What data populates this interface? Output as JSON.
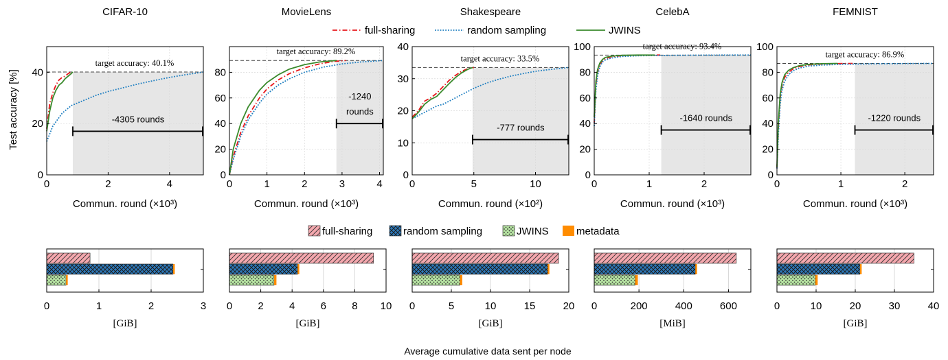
{
  "figure": {
    "ylabel_top": "Test accuracy [%]",
    "bottom_caption": "Average cumulative data sent per node",
    "colors": {
      "full_sharing": "#e8171c",
      "random_sampling": "#1f7fc1",
      "jwins": "#3a8a2c",
      "metadata": "#ff8c00",
      "full_sharing_fill": "#f4a8ae",
      "random_sampling_fill": "#2e78b7",
      "jwins_fill": "#b6e3a2",
      "shade": "#e6e6e6"
    }
  },
  "legend_top": [
    {
      "key": "full_sharing",
      "label": "full-sharing"
    },
    {
      "key": "random_sampling",
      "label": "random sampling"
    },
    {
      "key": "jwins",
      "label": "JWINS"
    }
  ],
  "legend_bottom": [
    {
      "key": "full_sharing",
      "label": "full-sharing"
    },
    {
      "key": "random_sampling",
      "label": "random sampling"
    },
    {
      "key": "jwins",
      "label": "JWINS"
    },
    {
      "key": "metadata",
      "label": "metadata"
    }
  ],
  "chart_data": [
    {
      "type": "line",
      "title": "CIFAR-10",
      "xlabel": "Commun. round (×10³)",
      "ylabel": "Test accuracy [%]",
      "xlim": [
        0,
        5.1
      ],
      "ylim": [
        0,
        50
      ],
      "xticks": [
        0,
        2,
        4
      ],
      "yticks": [
        0,
        20,
        40
      ],
      "target_accuracy": 40.1,
      "target_label": "target accuracy: 40.1%",
      "saving_label": "-4305 rounds",
      "shade_from": 0.85,
      "arrow_y": 17,
      "series": [
        {
          "name": "full-sharing",
          "key": "full_sharing",
          "x": [
            0,
            0.1,
            0.2,
            0.3,
            0.4,
            0.5,
            0.6,
            0.7,
            0.8
          ],
          "y": [
            18,
            28,
            32,
            35,
            37,
            38,
            38.5,
            39.5,
            40.1
          ]
        },
        {
          "name": "random sampling",
          "key": "random_sampling",
          "x": [
            0,
            0.2,
            0.5,
            0.8,
            1.2,
            1.6,
            2,
            2.5,
            3,
            3.5,
            4,
            4.5,
            5.1
          ],
          "y": [
            13,
            19,
            24,
            27,
            29,
            31,
            32.5,
            34,
            35.5,
            36.8,
            38,
            39,
            40.1
          ]
        },
        {
          "name": "JWINS",
          "key": "jwins",
          "x": [
            0,
            0.1,
            0.2,
            0.3,
            0.4,
            0.5,
            0.6,
            0.7,
            0.8,
            0.85
          ],
          "y": [
            17,
            25,
            30,
            33,
            35,
            36,
            37.5,
            38.5,
            39.5,
            40.1
          ]
        }
      ]
    },
    {
      "type": "line",
      "title": "MovieLens",
      "xlabel": "Commun. round (×10³)",
      "xlim": [
        0,
        4.1
      ],
      "ylim": [
        0,
        100
      ],
      "xticks": [
        0,
        1,
        2,
        3,
        4
      ],
      "yticks": [
        0,
        20,
        40,
        60,
        80
      ],
      "target_accuracy": 89.2,
      "target_label": "target accuracy: 89.2%",
      "saving_label_lines": [
        "-1240",
        "rounds"
      ],
      "shade_from": 2.85,
      "arrow_y": 40,
      "series": [
        {
          "name": "full-sharing",
          "key": "full_sharing",
          "x": [
            0,
            0.1,
            0.3,
            0.5,
            0.8,
            1.0,
            1.3,
            1.6,
            2.0,
            2.4,
            2.8,
            3.1
          ],
          "y": [
            0,
            14,
            33,
            46,
            60,
            67,
            74,
            79,
            83.5,
            86.5,
            88.5,
            89.2
          ]
        },
        {
          "name": "random sampling",
          "key": "random_sampling",
          "x": [
            0,
            0.1,
            0.3,
            0.5,
            0.8,
            1.0,
            1.3,
            1.6,
            2.0,
            2.5,
            3.0,
            3.5,
            4.1
          ],
          "y": [
            0,
            12,
            30,
            43,
            56,
            63,
            70,
            75,
            80,
            84,
            86.5,
            88,
            89.2
          ]
        },
        {
          "name": "JWINS",
          "key": "jwins",
          "x": [
            0,
            0.1,
            0.3,
            0.5,
            0.8,
            1.0,
            1.3,
            1.6,
            2.0,
            2.4,
            2.85
          ],
          "y": [
            0,
            20,
            40,
            53,
            66,
            72,
            78,
            82.5,
            86,
            88,
            89.2
          ]
        }
      ]
    },
    {
      "type": "line",
      "title": "Shakespeare",
      "xlabel": "Commun. round (×10²)",
      "xlim": [
        0,
        12.7
      ],
      "ylim": [
        0,
        40
      ],
      "xticks": [
        0,
        5,
        10
      ],
      "yticks": [
        0,
        10,
        20,
        30,
        40
      ],
      "target_accuracy": 33.5,
      "target_label": "target accuracy: 33.5%",
      "saving_label": "-777 rounds",
      "shade_from": 4.9,
      "arrow_y": 11,
      "series": [
        {
          "name": "full-sharing",
          "key": "full_sharing",
          "x": [
            0,
            0.5,
            1,
            1.5,
            2,
            2.5,
            3,
            3.5,
            4,
            4.5,
            5
          ],
          "y": [
            18,
            20,
            23,
            24,
            25.5,
            27.5,
            29.5,
            31,
            32.3,
            33.1,
            33.5
          ]
        },
        {
          "name": "random sampling",
          "key": "random_sampling",
          "x": [
            0,
            0.5,
            1,
            1.5,
            2,
            2.5,
            3,
            3.5,
            4,
            5,
            6,
            7,
            8,
            9,
            10,
            11,
            12,
            12.7
          ],
          "y": [
            17.5,
            18.5,
            19.5,
            20.5,
            21.5,
            22,
            23,
            24,
            25,
            27,
            28.6,
            29.8,
            30.8,
            31.6,
            32.3,
            32.8,
            33.2,
            33.5
          ]
        },
        {
          "name": "JWINS",
          "key": "jwins",
          "x": [
            0,
            0.5,
            1,
            1.5,
            2,
            2.5,
            3,
            3.5,
            4,
            4.5,
            4.9
          ],
          "y": [
            17.5,
            19.5,
            22,
            23.5,
            24.5,
            26.5,
            28.5,
            30.3,
            31.8,
            32.9,
            33.5
          ]
        }
      ]
    },
    {
      "type": "line",
      "title": "CelebA",
      "xlabel": "Commun. round (×10³)",
      "xlim": [
        0,
        2.85
      ],
      "ylim": [
        0,
        100
      ],
      "xticks": [
        0,
        1,
        2
      ],
      "yticks": [
        0,
        20,
        40,
        60,
        80,
        100
      ],
      "target_accuracy": 93.4,
      "target_label": "target accuracy: 93.4%",
      "saving_label": "-1640 rounds",
      "shade_from": 1.22,
      "arrow_y": 35,
      "series": [
        {
          "name": "full-sharing",
          "key": "full_sharing",
          "x": [
            0,
            0.03,
            0.06,
            0.1,
            0.15,
            0.2,
            0.3,
            0.5,
            0.8,
            1.2
          ],
          "y": [
            40,
            70,
            80,
            86,
            89,
            90.5,
            92,
            93,
            93.3,
            93.4
          ]
        },
        {
          "name": "random sampling",
          "key": "random_sampling",
          "x": [
            0,
            0.03,
            0.06,
            0.1,
            0.15,
            0.2,
            0.3,
            0.5,
            0.8,
            1.2,
            1.8,
            2.4,
            2.85
          ],
          "y": [
            38,
            66,
            77,
            84,
            88,
            89.5,
            91,
            92.3,
            92.9,
            93.1,
            93.3,
            93.4,
            93.4
          ]
        },
        {
          "name": "JWINS",
          "key": "jwins",
          "x": [
            0,
            0.03,
            0.06,
            0.1,
            0.15,
            0.2,
            0.3,
            0.5,
            0.8,
            1.1
          ],
          "y": [
            45,
            73,
            82,
            87,
            90,
            91.5,
            92.5,
            93.2,
            93.4,
            93.4
          ]
        }
      ]
    },
    {
      "type": "line",
      "title": "FEMNIST",
      "xlabel": "Commun. round (×10³)",
      "xlim": [
        0,
        2.45
      ],
      "ylim": [
        0,
        100
      ],
      "xticks": [
        0,
        1,
        2
      ],
      "yticks": [
        0,
        20,
        40,
        60,
        80,
        100
      ],
      "target_accuracy": 86.9,
      "target_label": "target accuracy: 86.9%",
      "saving_label": "-1220 rounds",
      "shade_from": 1.22,
      "arrow_y": 35,
      "series": [
        {
          "name": "full-sharing",
          "key": "full_sharing",
          "x": [
            0,
            0.02,
            0.05,
            0.08,
            0.12,
            0.18,
            0.25,
            0.35,
            0.5,
            0.7,
            1.0,
            1.2
          ],
          "y": [
            5,
            35,
            60,
            70,
            76,
            80,
            82.5,
            84.5,
            85.8,
            86.4,
            86.8,
            86.9
          ]
        },
        {
          "name": "random sampling",
          "key": "random_sampling",
          "x": [
            0,
            0.02,
            0.05,
            0.08,
            0.12,
            0.18,
            0.25,
            0.35,
            0.5,
            0.7,
            1.0,
            1.5,
            2.0,
            2.45
          ],
          "y": [
            5,
            30,
            55,
            66,
            73,
            78,
            81,
            83.3,
            84.8,
            85.6,
            86.2,
            86.6,
            86.8,
            86.9
          ]
        },
        {
          "name": "JWINS",
          "key": "jwins",
          "x": [
            0,
            0.02,
            0.05,
            0.08,
            0.12,
            0.18,
            0.25,
            0.35,
            0.5,
            0.7,
            0.95
          ],
          "y": [
            6,
            40,
            63,
            72,
            78,
            81.5,
            83.5,
            85.2,
            86.2,
            86.7,
            86.9
          ]
        }
      ]
    },
    {
      "type": "bar",
      "orientation": "horizontal",
      "title": "CIFAR-10",
      "xlabel": "[GiB]",
      "xlim": [
        0,
        3
      ],
      "xticks": [
        0,
        1,
        2,
        3
      ],
      "bars": [
        {
          "key": "full_sharing",
          "value": 0.83,
          "metadata": 0
        },
        {
          "key": "random_sampling",
          "value": 2.42,
          "metadata": 0.02
        },
        {
          "key": "jwins",
          "value": 0.37,
          "metadata": 0.03
        }
      ]
    },
    {
      "type": "bar",
      "orientation": "horizontal",
      "title": "MovieLens",
      "xlabel": "[GiB]",
      "xlim": [
        0,
        10
      ],
      "xticks": [
        0,
        2,
        4,
        6,
        8,
        10
      ],
      "bars": [
        {
          "key": "full_sharing",
          "value": 9.2,
          "metadata": 0
        },
        {
          "key": "random_sampling",
          "value": 4.35,
          "metadata": 0.05
        },
        {
          "key": "jwins",
          "value": 2.85,
          "metadata": 0.15
        }
      ]
    },
    {
      "type": "bar",
      "orientation": "horizontal",
      "title": "Shakespeare",
      "xlabel": "[GiB]",
      "xlim": [
        0,
        20
      ],
      "xticks": [
        0,
        5,
        10,
        15,
        20
      ],
      "bars": [
        {
          "key": "full_sharing",
          "value": 18.7,
          "metadata": 0
        },
        {
          "key": "random_sampling",
          "value": 17.3,
          "metadata": 0.1
        },
        {
          "key": "jwins",
          "value": 6.1,
          "metadata": 0.3
        }
      ]
    },
    {
      "type": "bar",
      "orientation": "horizontal",
      "title": "CelebA",
      "xlabel": "[MiB]",
      "xlim": [
        0,
        700
      ],
      "xticks": [
        0,
        200,
        400,
        600
      ],
      "bars": [
        {
          "key": "full_sharing",
          "value": 635,
          "metadata": 0
        },
        {
          "key": "random_sampling",
          "value": 452,
          "metadata": 4
        },
        {
          "key": "jwins",
          "value": 183,
          "metadata": 12
        }
      ]
    },
    {
      "type": "bar",
      "orientation": "horizontal",
      "title": "FEMNIST",
      "xlabel": "[GiB]",
      "xlim": [
        0,
        40
      ],
      "xticks": [
        0,
        10,
        20,
        30,
        40
      ],
      "bars": [
        {
          "key": "full_sharing",
          "value": 35,
          "metadata": 0
        },
        {
          "key": "random_sampling",
          "value": 21.2,
          "metadata": 0.2
        },
        {
          "key": "jwins",
          "value": 9.8,
          "metadata": 0.6
        }
      ]
    }
  ]
}
